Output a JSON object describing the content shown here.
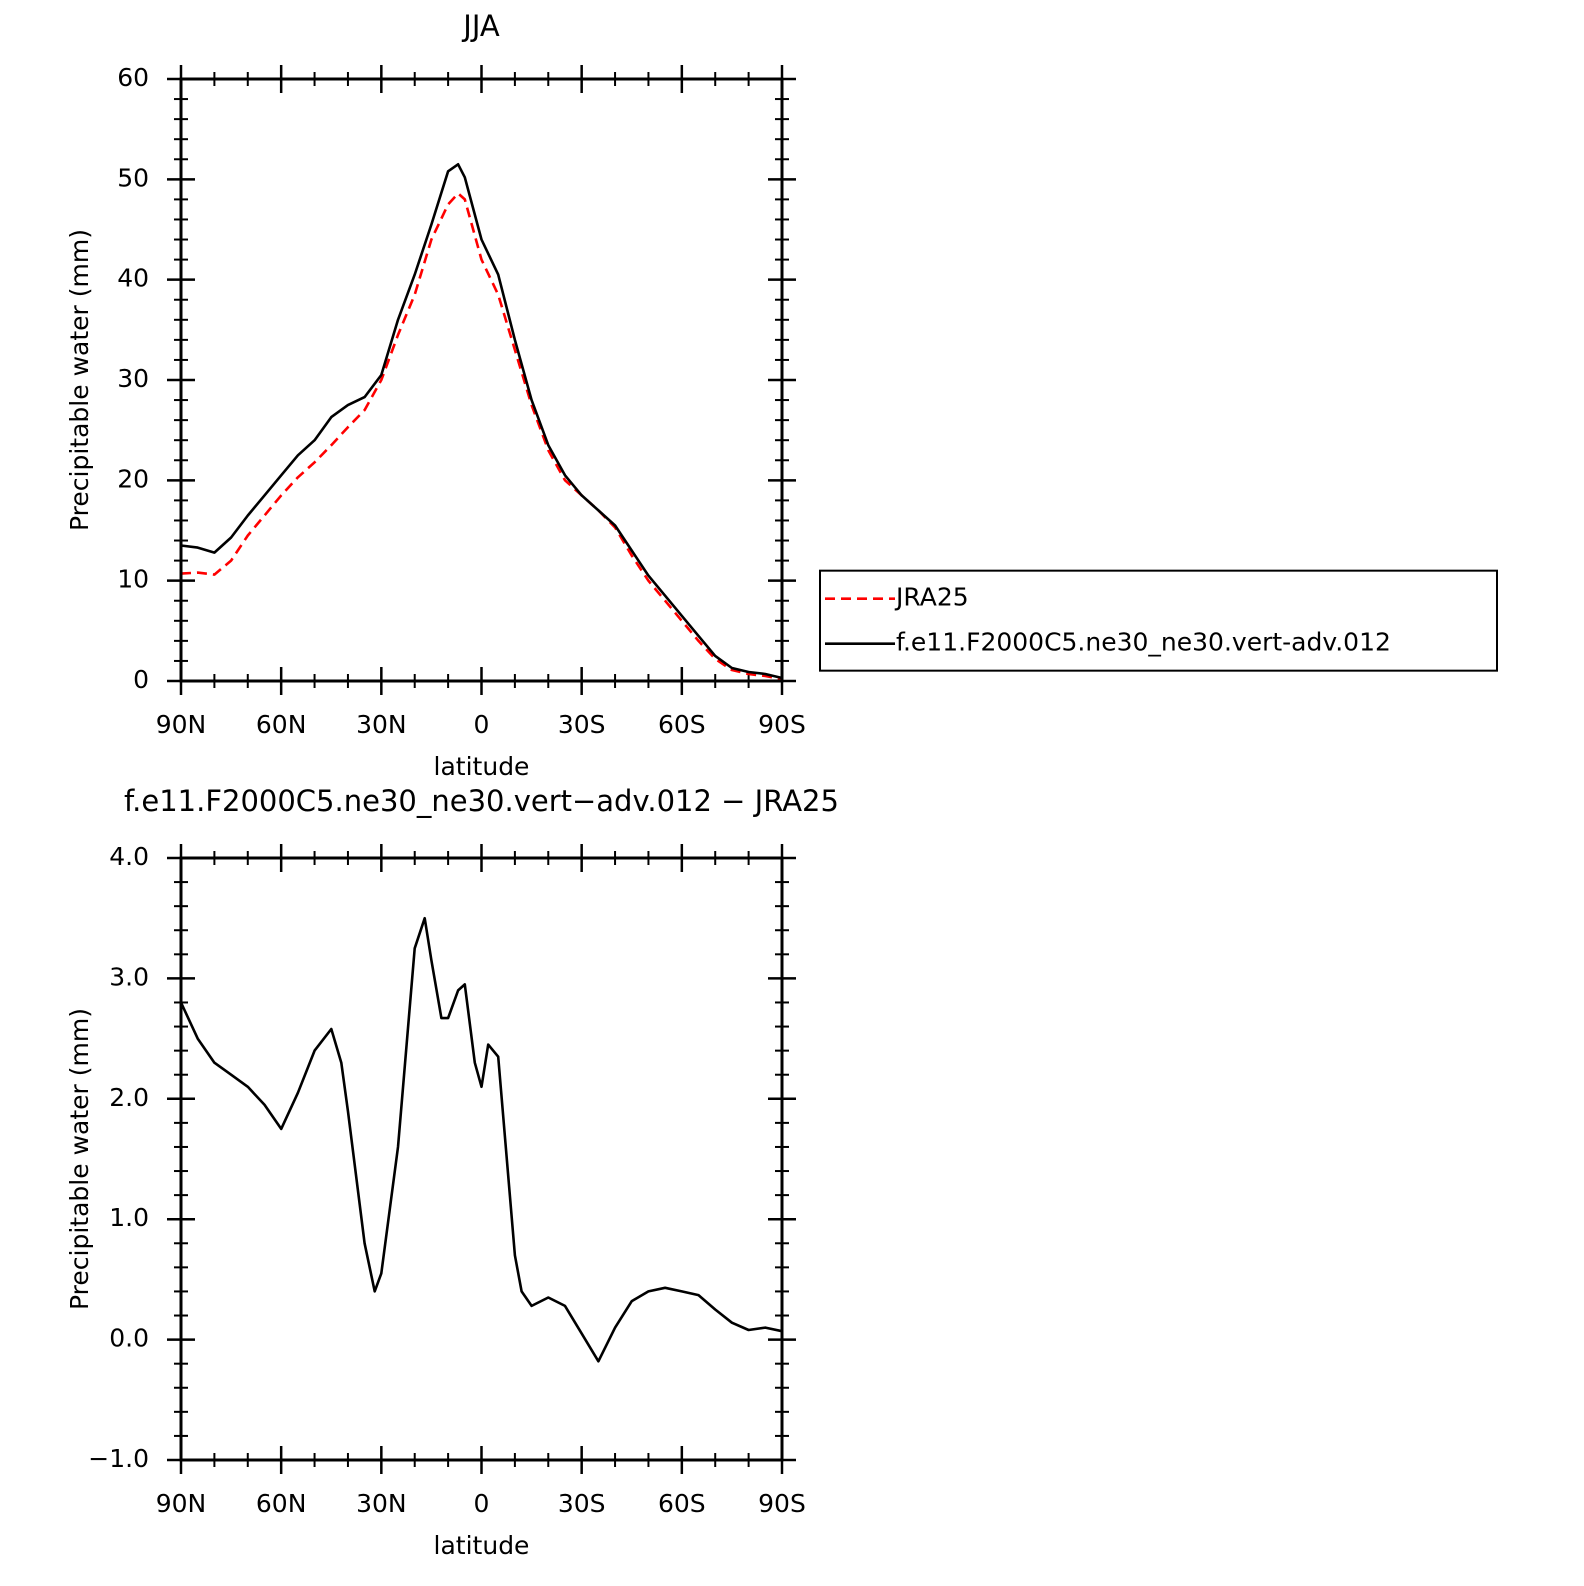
{
  "chart_data": [
    {
      "type": "line",
      "title": "JJA",
      "xlabel": "latitude",
      "ylabel": "Precipitable water (mm)",
      "x": [
        90,
        85,
        80,
        75,
        70,
        65,
        60,
        55,
        50,
        45,
        40,
        35,
        30,
        25,
        20,
        15,
        10,
        7,
        5,
        0,
        -5,
        -10,
        -15,
        -20,
        -25,
        -30,
        -35,
        -40,
        -45,
        -50,
        -55,
        -60,
        -65,
        -70,
        -75,
        -80,
        -85,
        -90
      ],
      "series": [
        {
          "name": "JRA25",
          "color": "#ff0000",
          "linestyle": "dashed",
          "values": [
            10.7,
            10.8,
            10.6,
            12,
            14.5,
            16.5,
            18.5,
            20.3,
            21.8,
            23.5,
            25.3,
            27,
            30,
            34.5,
            38.5,
            44,
            47.5,
            48.6,
            48,
            42,
            38.5,
            33,
            27.5,
            23,
            20,
            18.5,
            17,
            15.3,
            12.5,
            10,
            8,
            6,
            4,
            2.2,
            1.1,
            0.7,
            0.5,
            0.2
          ]
        },
        {
          "name": "f.e11.F2000C5.ne30_ne30.vert-adv.012",
          "color": "#000000",
          "linestyle": "solid",
          "values": [
            13.5,
            13.3,
            12.8,
            14.3,
            16.5,
            18.5,
            20.5,
            22.5,
            24,
            26.3,
            27.5,
            28.3,
            30.5,
            36,
            40.5,
            45.5,
            50.8,
            51.5,
            50.2,
            44,
            40.5,
            34,
            28,
            23.5,
            20.5,
            18.5,
            17,
            15.5,
            13,
            10.5,
            8.5,
            6.5,
            4.5,
            2.5,
            1.3,
            0.9,
            0.7,
            0.3
          ]
        }
      ],
      "xlim": [
        90,
        -90
      ],
      "xticks": [
        {
          "value": 90,
          "label": "90N"
        },
        {
          "value": 60,
          "label": "60N"
        },
        {
          "value": 30,
          "label": "30N"
        },
        0,
        {
          "value": -30,
          "label": "30S"
        },
        {
          "value": -60,
          "label": "60S"
        },
        {
          "value": -90,
          "label": "90S"
        }
      ],
      "ylim": [
        0,
        60
      ],
      "yticks": [
        0,
        10,
        20,
        30,
        40,
        50,
        60
      ],
      "legend": "right"
    },
    {
      "type": "line",
      "title": "f.e11.F2000C5.ne30_ne30.vert−adv.012 − JRA25",
      "xlabel": "latitude",
      "ylabel": "Precipitable water (mm)",
      "x": [
        90,
        85,
        80,
        75,
        70,
        65,
        60,
        55,
        50,
        45,
        42,
        40,
        35,
        32,
        30,
        25,
        20,
        17,
        15,
        12,
        10,
        7,
        5,
        2,
        0,
        -2,
        -5,
        -10,
        -12,
        -15,
        -20,
        -25,
        -30,
        -35,
        -40,
        -45,
        -50,
        -55,
        -60,
        -65,
        -70,
        -75,
        -80,
        -85,
        -90
      ],
      "series": [
        {
          "color": "#000000",
          "linestyle": "solid",
          "values": [
            2.8,
            2.5,
            2.3,
            2.2,
            2.1,
            1.95,
            1.75,
            2.05,
            2.4,
            2.58,
            2.3,
            1.9,
            0.8,
            0.4,
            0.55,
            1.6,
            3.25,
            3.5,
            3.15,
            2.67,
            2.67,
            2.9,
            2.95,
            2.3,
            2.1,
            2.45,
            2.35,
            0.7,
            0.4,
            0.28,
            0.35,
            0.28,
            0.05,
            -0.18,
            0.1,
            0.32,
            0.4,
            0.43,
            0.4,
            0.37,
            0.25,
            0.14,
            0.08,
            0.1,
            0.07
          ]
        }
      ],
      "xlim": [
        90,
        -90
      ],
      "xticks": [
        {
          "value": 90,
          "label": "90N"
        },
        {
          "value": 60,
          "label": "60N"
        },
        {
          "value": 30,
          "label": "30N"
        },
        0,
        {
          "value": -30,
          "label": "30S"
        },
        {
          "value": -60,
          "label": "60S"
        },
        {
          "value": -90,
          "label": "90S"
        }
      ],
      "ylim": [
        -1,
        4
      ],
      "yticks": [
        {
          "value": -1,
          "label": "−1.0"
        },
        {
          "value": 0,
          "label": "0.0"
        },
        {
          "value": 1,
          "label": "1.0"
        },
        {
          "value": 2,
          "label": "2.0"
        },
        {
          "value": 3,
          "label": "3.0"
        },
        {
          "value": 4,
          "label": "4.0"
        }
      ]
    }
  ]
}
